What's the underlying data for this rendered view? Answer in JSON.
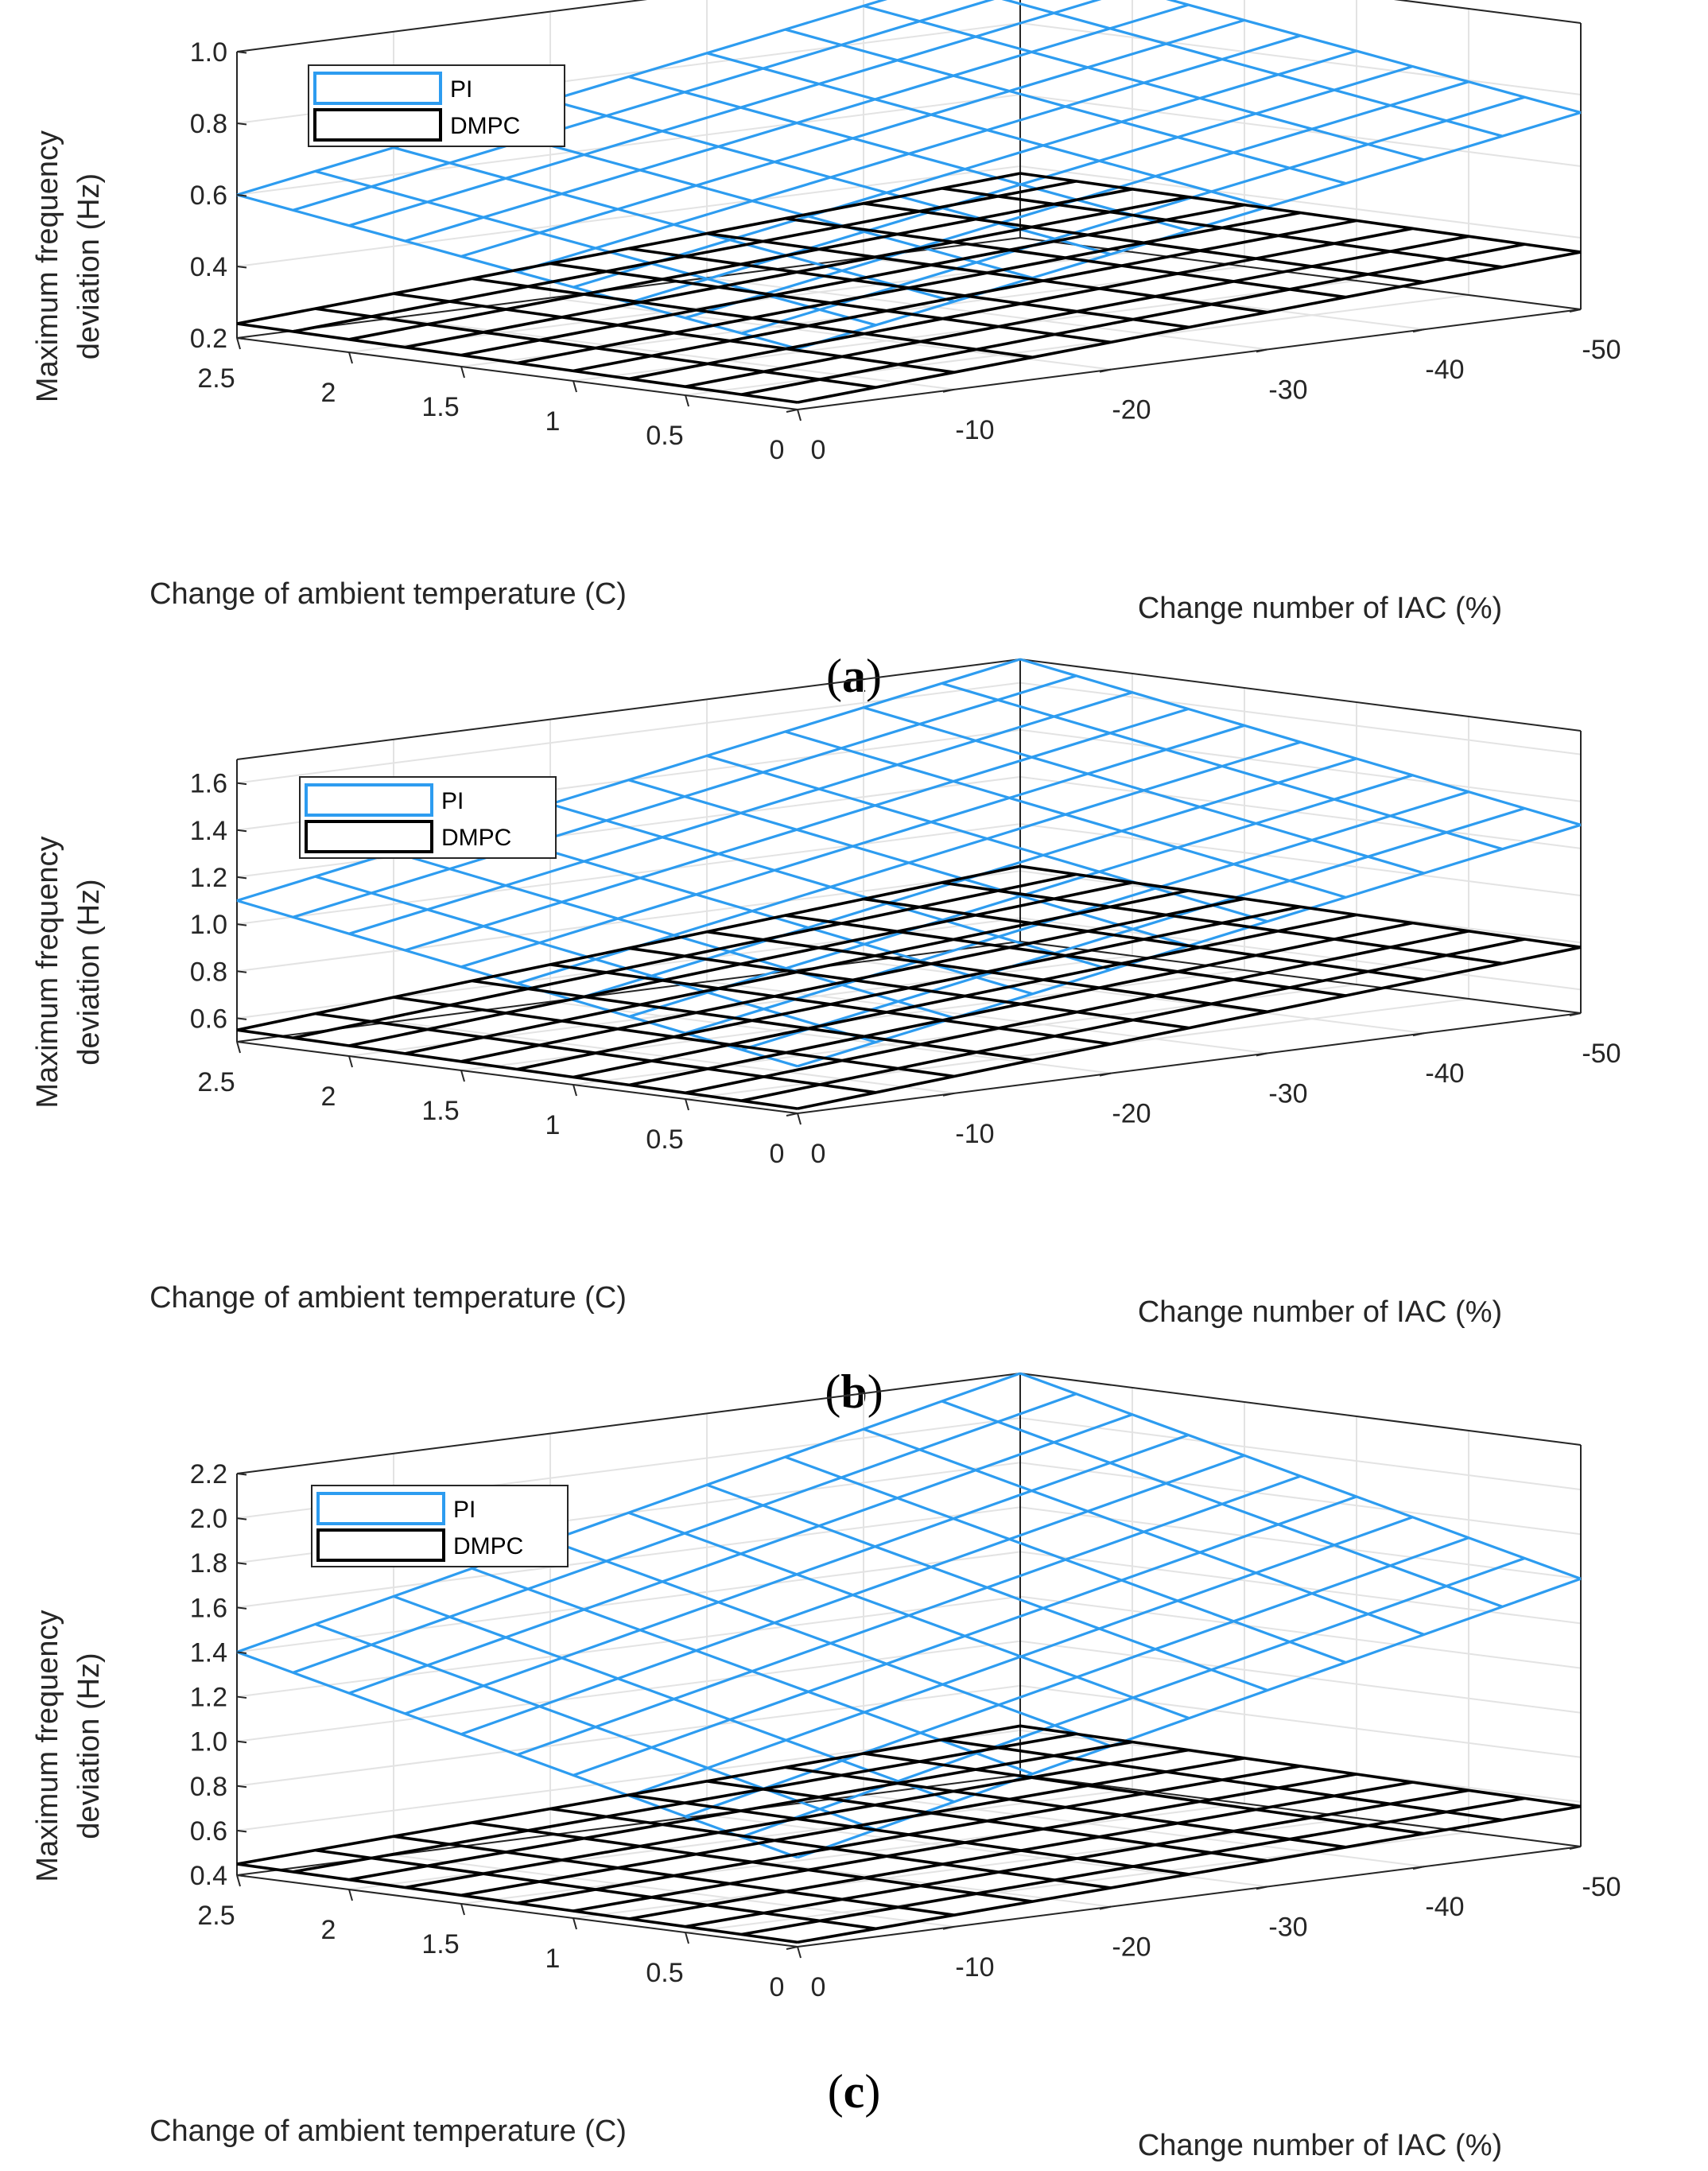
{
  "chart_data": [
    {
      "type": "surface3d",
      "subfigure": "(a)",
      "subfigure_letter": "a",
      "xlabel": "Change number of IAC (%)",
      "ylabel": "Change of ambient temperature (C)",
      "zlabel_lines": [
        "Maximum frequency",
        "deviation (Hz)"
      ],
      "x": [
        0,
        -5,
        -10,
        -15,
        -20,
        -25,
        -30,
        -35,
        -40,
        -45,
        -50
      ],
      "x_ticks": [
        0,
        -10,
        -20,
        -30,
        -40,
        -50
      ],
      "x_tick_labels": [
        "0",
        "-10",
        "-20",
        "-30",
        "-40",
        "-50"
      ],
      "y": [
        0,
        0.25,
        0.5,
        0.75,
        1.0,
        1.25,
        1.5,
        1.75,
        2.0,
        2.25,
        2.5
      ],
      "y_ticks": [
        0,
        0.5,
        1,
        1.5,
        2,
        2.5
      ],
      "y_tick_labels": [
        "0",
        "0.5",
        "1",
        "1.5",
        "2",
        "2.5"
      ],
      "zlim": [
        0.2,
        1.0
      ],
      "z_ticks": [
        0.2,
        0.4,
        0.6,
        0.8,
        1.0
      ],
      "z_tick_labels": [
        "0.2",
        "0.4",
        "0.6",
        "0.8",
        "1.0"
      ],
      "grid": true,
      "legend_position": "top-left",
      "series": [
        {
          "name": "PI",
          "color": "#2d9cf0",
          "corner_values": {
            "x0_y0": 0.37,
            "x50_y0": 0.75,
            "x0_y2.5": 0.6,
            "x50_y2.5": 0.98
          }
        },
        {
          "name": "DMPC",
          "color": "#000000",
          "corner_values": {
            "x0_y0": 0.22,
            "x50_y0": 0.36,
            "x0_y2.5": 0.24,
            "x50_y2.5": 0.38
          }
        }
      ]
    },
    {
      "type": "surface3d",
      "subfigure": "(b)",
      "subfigure_letter": "b",
      "xlabel": "Change number of IAC (%)",
      "ylabel": "Change of ambient temperature (C)",
      "zlabel_lines": [
        "Maximum frequency",
        "deviation (Hz)"
      ],
      "x": [
        0,
        -5,
        -10,
        -15,
        -20,
        -25,
        -30,
        -35,
        -40,
        -45,
        -50
      ],
      "x_ticks": [
        0,
        -10,
        -20,
        -30,
        -40,
        -50
      ],
      "x_tick_labels": [
        "0",
        "-10",
        "-20",
        "-30",
        "-40",
        "-50"
      ],
      "y": [
        0,
        0.25,
        0.5,
        0.75,
        1.0,
        1.25,
        1.5,
        1.75,
        2.0,
        2.25,
        2.5
      ],
      "y_ticks": [
        0,
        0.5,
        1,
        1.5,
        2,
        2.5
      ],
      "y_tick_labels": [
        "0",
        "0.5",
        "1",
        "1.5",
        "2",
        "2.5"
      ],
      "zlim": [
        0.5,
        1.7
      ],
      "z_ticks": [
        0.6,
        0.8,
        1.0,
        1.2,
        1.4,
        1.6
      ],
      "z_tick_labels": [
        "0.6",
        "0.8",
        "1.0",
        "1.2",
        "1.4",
        "1.6"
      ],
      "grid": true,
      "legend_position": "top-left",
      "series": [
        {
          "name": "PI",
          "color": "#2d9cf0",
          "corner_values": {
            "x0_y0": 0.7,
            "x50_y0": 1.3,
            "x0_y2.5": 1.1,
            "x50_y2.5": 1.7
          }
        },
        {
          "name": "DMPC",
          "color": "#000000",
          "corner_values": {
            "x0_y0": 0.52,
            "x50_y0": 0.78,
            "x0_y2.5": 0.55,
            "x50_y2.5": 0.82
          }
        }
      ]
    },
    {
      "type": "surface3d",
      "subfigure": "(c)",
      "subfigure_letter": "c",
      "xlabel": "Change number of IAC (%)",
      "ylabel": "Change of ambient temperature (C)",
      "zlabel_lines": [
        "Maximum frequency",
        "deviation (Hz)"
      ],
      "x": [
        0,
        -5,
        -10,
        -15,
        -20,
        -25,
        -30,
        -35,
        -40,
        -45,
        -50
      ],
      "x_ticks": [
        0,
        -10,
        -20,
        -30,
        -40,
        -50
      ],
      "x_tick_labels": [
        "0",
        "-10",
        "-20",
        "-30",
        "-40",
        "-50"
      ],
      "y": [
        0,
        0.25,
        0.5,
        0.75,
        1.0,
        1.25,
        1.5,
        1.75,
        2.0,
        2.25,
        2.5
      ],
      "y_ticks": [
        0,
        0.5,
        1,
        1.5,
        2,
        2.5
      ],
      "y_tick_labels": [
        "0",
        "0.5",
        "1",
        "1.5",
        "2",
        "2.5"
      ],
      "zlim": [
        0.4,
        2.2
      ],
      "z_ticks": [
        0.4,
        0.6,
        0.8,
        1.0,
        1.2,
        1.4,
        1.6,
        1.8,
        2.0,
        2.2
      ],
      "z_tick_labels": [
        "0.4",
        "0.6",
        "0.8",
        "1.0",
        "1.2",
        "1.4",
        "1.6",
        "1.8",
        "2.0",
        "2.2"
      ],
      "grid": true,
      "legend_position": "top-left",
      "series": [
        {
          "name": "PI",
          "color": "#2d9cf0",
          "corner_values": {
            "x0_y0": 0.8,
            "x50_y0": 1.6,
            "x0_y2.5": 1.4,
            "x50_y2.5": 2.2
          }
        },
        {
          "name": "DMPC",
          "color": "#000000",
          "corner_values": {
            "x0_y0": 0.42,
            "x50_y0": 0.58,
            "x0_y2.5": 0.45,
            "x50_y2.5": 0.62
          }
        }
      ]
    }
  ]
}
